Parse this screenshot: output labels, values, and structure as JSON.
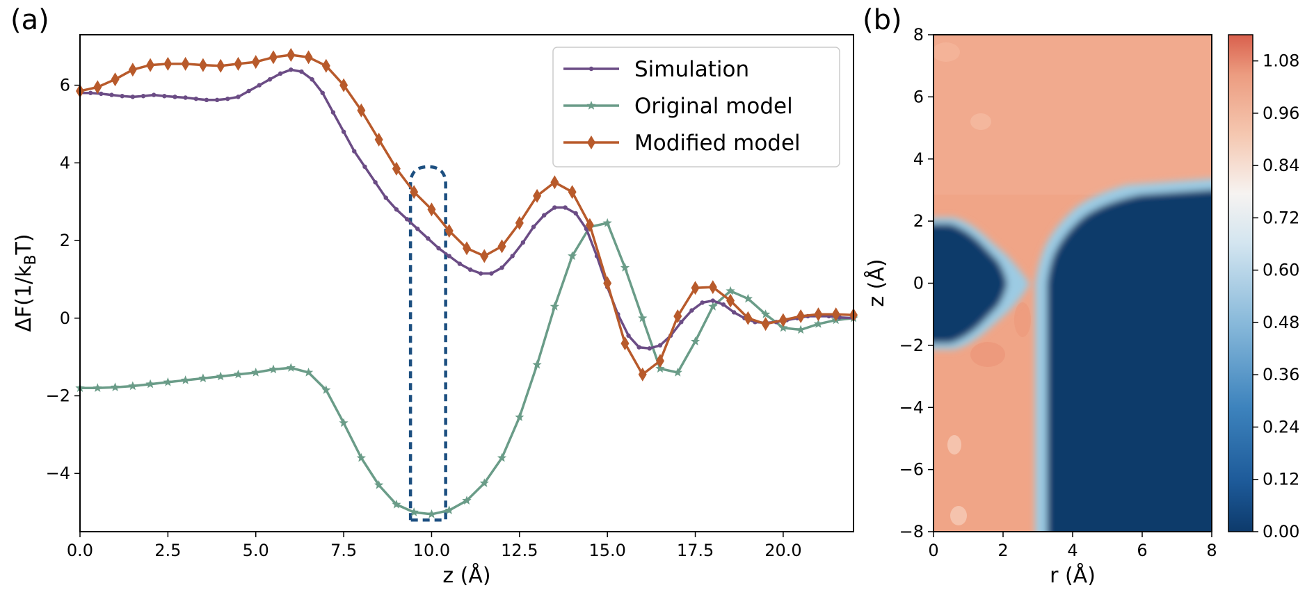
{
  "figure": {
    "panel_a_label": "(a)",
    "panel_b_label": "(b)"
  },
  "colors": {
    "simulation": "#6b4c85",
    "original": "#6a9c88",
    "modified": "#b85a2b",
    "highlight_box": "#1c4f80",
    "heat_high": "#f0a080",
    "heat_low": "#0d3a6b"
  },
  "chart_data": [
    {
      "type": "line",
      "panel": "(a)",
      "title": "",
      "xlabel": "z (Å)",
      "ylabel": "ΔF(1/k_B T)",
      "xlim": [
        0,
        22
      ],
      "ylim": [
        -5.5,
        7.3
      ],
      "xticks": [
        0.0,
        2.5,
        5.0,
        7.5,
        10.0,
        12.5,
        15.0,
        17.5,
        20.0
      ],
      "xtick_labels": [
        "0.0",
        "2.5",
        "5.0",
        "7.5",
        "10.0",
        "12.5",
        "15.0",
        "17.5",
        "20.0"
      ],
      "yticks": [
        -4,
        -2,
        0,
        2,
        4,
        6
      ],
      "ytick_labels": [
        "−4",
        "−2",
        "0",
        "2",
        "4",
        "6"
      ],
      "legend_position": "top-right",
      "annotation": "dashed rounded box around z ≈ 9.4–10.4 Å",
      "highlight_box": {
        "x0": 9.4,
        "x1": 10.4,
        "y0": -5.2,
        "y1": 3.9
      },
      "series": [
        {
          "name": "Simulation",
          "marker": "dot",
          "x": [
            0,
            0.3,
            0.6,
            0.9,
            1.2,
            1.5,
            1.8,
            2.1,
            2.4,
            2.7,
            3.0,
            3.3,
            3.6,
            3.9,
            4.2,
            4.5,
            4.8,
            5.1,
            5.4,
            5.7,
            6.0,
            6.3,
            6.6,
            6.9,
            7.2,
            7.5,
            7.8,
            8.1,
            8.4,
            8.7,
            9.0,
            9.3,
            9.6,
            9.9,
            10.2,
            10.5,
            10.8,
            11.1,
            11.4,
            11.7,
            12.0,
            12.3,
            12.6,
            12.9,
            13.2,
            13.5,
            13.8,
            14.1,
            14.4,
            14.7,
            15.0,
            15.3,
            15.6,
            15.9,
            16.2,
            16.5,
            16.8,
            17.1,
            17.4,
            17.7,
            18.0,
            18.3,
            18.6,
            18.9,
            19.2,
            19.5,
            19.8,
            20.1,
            20.4,
            20.7,
            21.0,
            21.3,
            21.6,
            22.0
          ],
          "values": [
            5.8,
            5.8,
            5.78,
            5.75,
            5.72,
            5.7,
            5.72,
            5.75,
            5.72,
            5.7,
            5.68,
            5.65,
            5.62,
            5.62,
            5.65,
            5.7,
            5.85,
            6.0,
            6.15,
            6.3,
            6.4,
            6.35,
            6.15,
            5.8,
            5.3,
            4.8,
            4.3,
            3.9,
            3.5,
            3.1,
            2.8,
            2.55,
            2.3,
            2.05,
            1.8,
            1.6,
            1.4,
            1.25,
            1.15,
            1.15,
            1.3,
            1.6,
            1.95,
            2.35,
            2.65,
            2.85,
            2.85,
            2.7,
            2.3,
            1.6,
            0.8,
            0.1,
            -0.45,
            -0.75,
            -0.78,
            -0.7,
            -0.45,
            -0.1,
            0.2,
            0.4,
            0.45,
            0.35,
            0.15,
            0.0,
            -0.1,
            -0.12,
            -0.1,
            -0.05,
            0.0,
            0.05,
            0.05,
            0.05,
            0.02,
            0.0
          ]
        },
        {
          "name": "Original model",
          "marker": "star",
          "x": [
            0,
            0.5,
            1.0,
            1.5,
            2.0,
            2.5,
            3.0,
            3.5,
            4.0,
            4.5,
            5.0,
            5.5,
            6.0,
            6.5,
            7.0,
            7.5,
            8.0,
            8.5,
            9.0,
            9.5,
            10.0,
            10.5,
            11.0,
            11.5,
            12.0,
            12.5,
            13.0,
            13.5,
            14.0,
            14.5,
            15.0,
            15.5,
            16.0,
            16.5,
            17.0,
            17.5,
            18.0,
            18.5,
            19.0,
            19.5,
            20.0,
            20.5,
            21.0,
            21.5,
            22.0
          ],
          "values": [
            -1.8,
            -1.8,
            -1.78,
            -1.75,
            -1.7,
            -1.65,
            -1.6,
            -1.55,
            -1.5,
            -1.45,
            -1.4,
            -1.32,
            -1.28,
            -1.4,
            -1.85,
            -2.7,
            -3.6,
            -4.3,
            -4.8,
            -5.0,
            -5.05,
            -4.95,
            -4.7,
            -4.25,
            -3.6,
            -2.55,
            -1.2,
            0.3,
            1.6,
            2.35,
            2.45,
            1.3,
            0.0,
            -1.3,
            -1.4,
            -0.6,
            0.3,
            0.7,
            0.5,
            0.1,
            -0.25,
            -0.3,
            -0.15,
            -0.05,
            0.0
          ]
        },
        {
          "name": "Modified model",
          "marker": "diamond",
          "x": [
            0,
            0.5,
            1.0,
            1.5,
            2.0,
            2.5,
            3.0,
            3.5,
            4.0,
            4.5,
            5.0,
            5.5,
            6.0,
            6.5,
            7.0,
            7.5,
            8.0,
            8.5,
            9.0,
            9.5,
            10.0,
            10.5,
            11.0,
            11.5,
            12.0,
            12.5,
            13.0,
            13.5,
            14.0,
            14.5,
            15.0,
            15.5,
            16.0,
            16.5,
            17.0,
            17.5,
            18.0,
            18.5,
            19.0,
            19.5,
            20.0,
            20.5,
            21.0,
            21.5,
            22.0
          ],
          "values": [
            5.85,
            5.95,
            6.15,
            6.4,
            6.52,
            6.55,
            6.55,
            6.52,
            6.5,
            6.55,
            6.6,
            6.72,
            6.78,
            6.72,
            6.5,
            6.0,
            5.35,
            4.6,
            3.85,
            3.25,
            2.8,
            2.25,
            1.8,
            1.6,
            1.85,
            2.45,
            3.15,
            3.5,
            3.25,
            2.4,
            0.9,
            -0.65,
            -1.45,
            -1.1,
            0.05,
            0.78,
            0.8,
            0.45,
            0.0,
            -0.15,
            -0.05,
            0.05,
            0.1,
            0.1,
            0.08
          ]
        }
      ]
    },
    {
      "type": "heatmap",
      "panel": "(b)",
      "title": "",
      "xlabel": "r (Å)",
      "ylabel": "z (Å)",
      "xlim": [
        0,
        8
      ],
      "ylim": [
        -8,
        8
      ],
      "xticks": [
        0,
        2,
        4,
        6,
        8
      ],
      "xtick_labels": [
        "0",
        "2",
        "4",
        "6",
        "8"
      ],
      "yticks": [
        -8,
        -6,
        -4,
        -2,
        0,
        2,
        4,
        6,
        8
      ],
      "ytick_labels": [
        "−8",
        "−6",
        "−4",
        "−2",
        "0",
        "2",
        "4",
        "6",
        "8"
      ],
      "colorbar": {
        "min": 0.0,
        "max": 1.14,
        "ticks": [
          0.0,
          0.12,
          0.24,
          0.36,
          0.48,
          0.6,
          0.72,
          0.84,
          0.96,
          1.08
        ],
        "tick_labels": [
          "0.00",
          "0.12",
          "0.24",
          "0.36",
          "0.48",
          "0.60",
          "0.72",
          "0.84",
          "0.96",
          "1.08"
        ],
        "colormap": "RdBu_r"
      },
      "regions": [
        {
          "name": "high-density background",
          "value": 1.0
        },
        {
          "name": "left low region",
          "value": 0.0,
          "r_range": [
            0,
            2.8
          ],
          "z_range": [
            -2.1,
            2.1
          ]
        },
        {
          "name": "right low region",
          "value": 0.0,
          "r_range": [
            3.2,
            8
          ],
          "z_range": [
            -8,
            3.3
          ]
        }
      ]
    }
  ]
}
